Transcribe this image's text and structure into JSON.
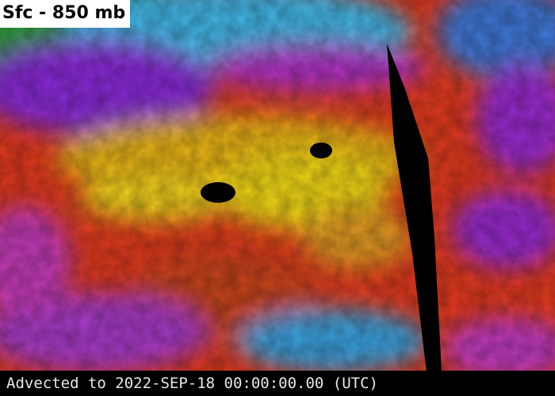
{
  "header": {
    "title": "Sfc - 850 mb"
  },
  "footer": {
    "timestamp": "Advected to 2022-SEP-18 00:00:00.00 (UTC)"
  }
}
